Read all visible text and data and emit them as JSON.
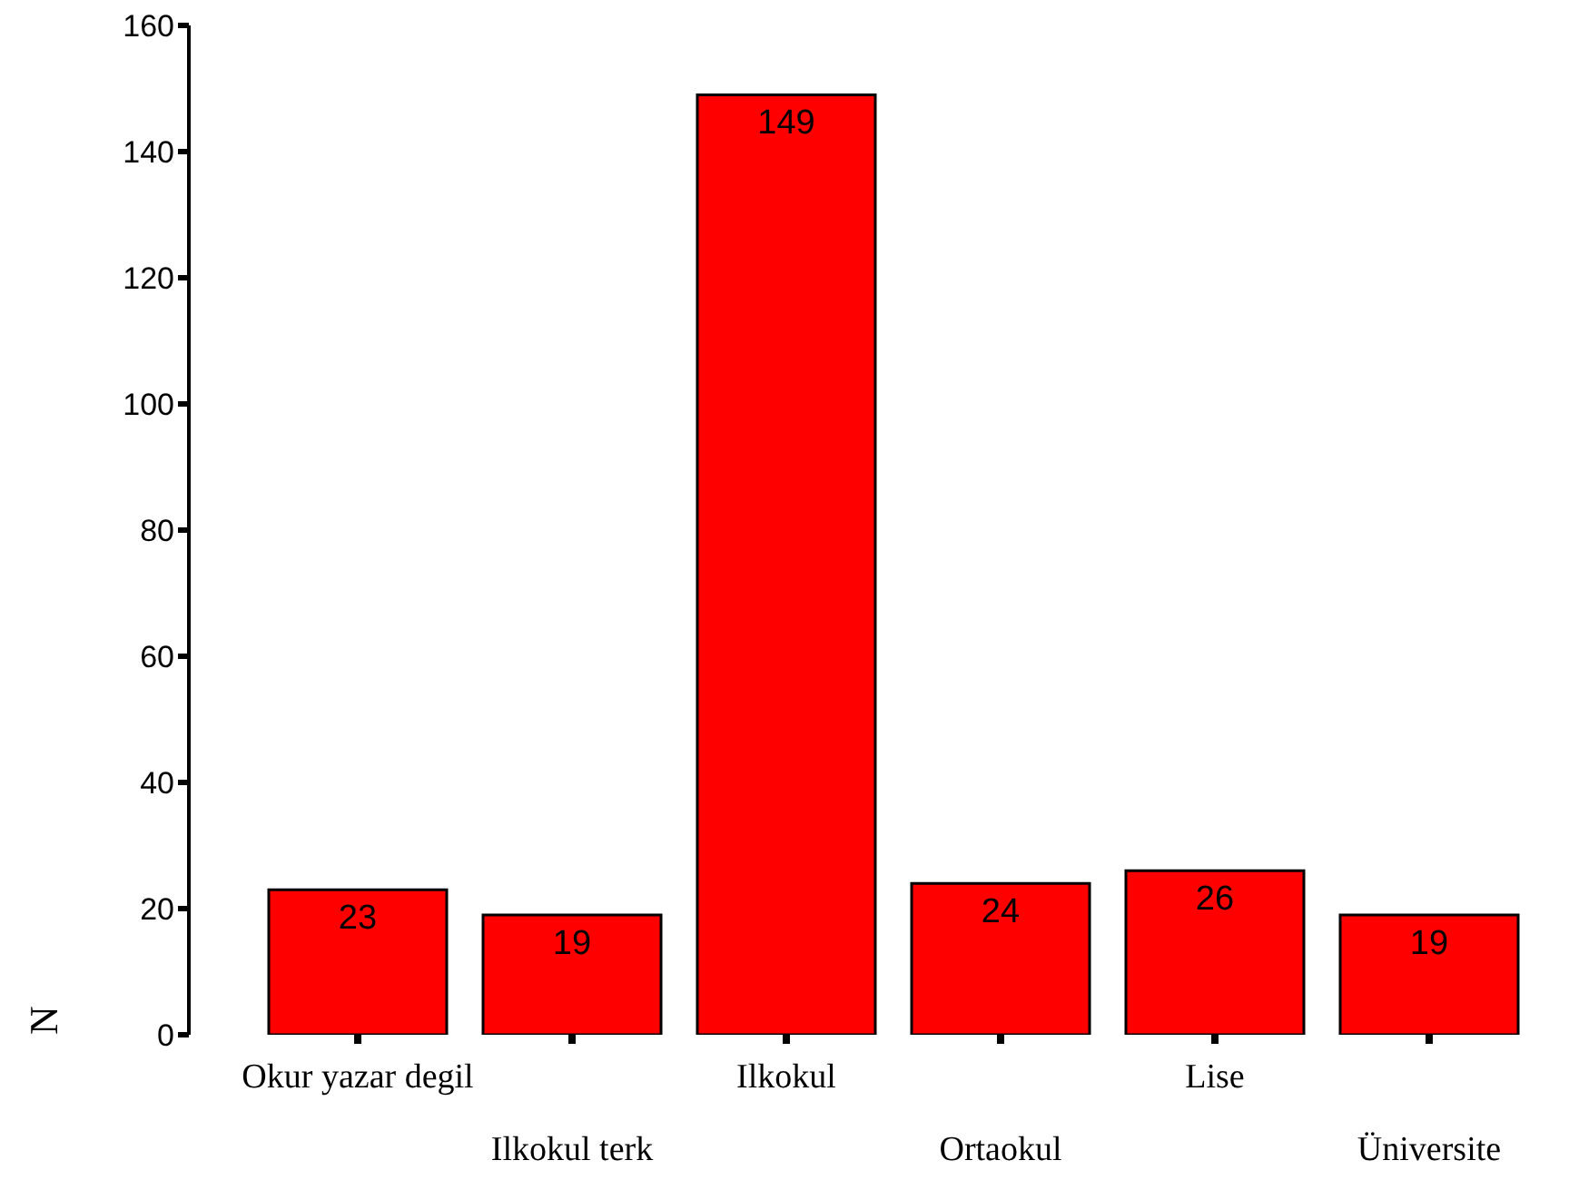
{
  "chart_data": {
    "type": "bar",
    "ylabel": "N",
    "categories": [
      "Okur yazar degil",
      "Ilkokul terk",
      "Ilkokul",
      "Ortaokul",
      "Lise",
      "Üniversite"
    ],
    "values": [
      23,
      19,
      149,
      24,
      26,
      19
    ],
    "color": "#ff0000",
    "ylim": [
      0,
      160
    ],
    "yticks": [
      0,
      20,
      40,
      60,
      80,
      100,
      120,
      140,
      160
    ],
    "data_labels": true
  }
}
